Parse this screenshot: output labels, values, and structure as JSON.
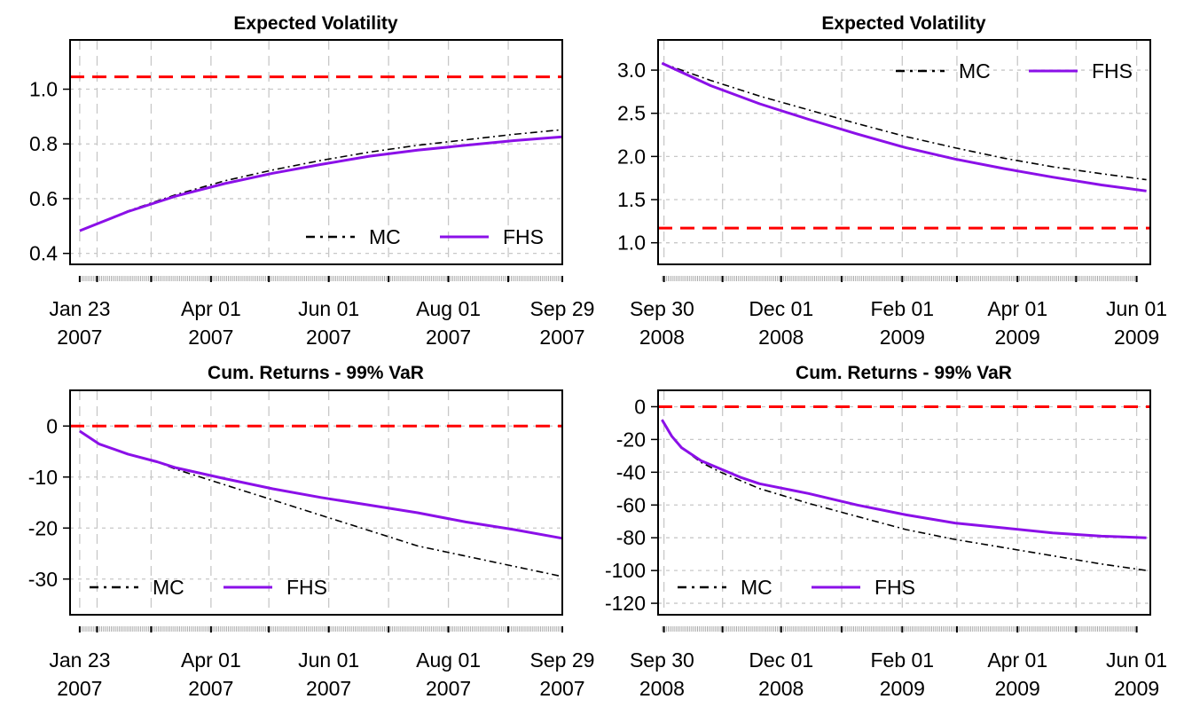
{
  "colors": {
    "mc": "#000000",
    "fhs": "#8b10e8",
    "ref": "#ff0000",
    "grid": "#c8c8c8"
  },
  "chart_data": [
    {
      "id": "vol-2007",
      "type": "line",
      "title": "Expected Volatility",
      "xlabel": "",
      "ylabel": "",
      "xlim": [
        -5,
        250
      ],
      "ylim": [
        0.36,
        1.18
      ],
      "yticks": [
        0.4,
        0.6,
        0.8,
        1.0
      ],
      "ytick_labels": [
        "0.4",
        "0.6",
        "0.8",
        "1.0"
      ],
      "xticks": [
        {
          "pos": 0,
          "line1": "Jan 23",
          "line2": "2007"
        },
        {
          "pos": 68,
          "line1": "Apr 01",
          "line2": "2007"
        },
        {
          "pos": 129,
          "line1": "Jun 01",
          "line2": "2007"
        },
        {
          "pos": 191,
          "line1": "Aug 01",
          "line2": "2007"
        },
        {
          "pos": 250,
          "line1": "Sep 29",
          "line2": "2007"
        }
      ],
      "vgrid": [
        0,
        9,
        37,
        68,
        98,
        129,
        160,
        191,
        222,
        250
      ],
      "grid": true,
      "hline": 1.045,
      "legend_position": "bottom-right",
      "x": [
        0,
        25,
        50,
        75,
        100,
        125,
        150,
        175,
        200,
        225,
        250
      ],
      "series": [
        {
          "name": "MC",
          "style": "dashdot",
          "values": [
            0.483,
            0.555,
            0.615,
            0.665,
            0.705,
            0.74,
            0.77,
            0.795,
            0.815,
            0.835,
            0.852
          ]
        },
        {
          "name": "FHS",
          "style": "solid",
          "values": [
            0.483,
            0.553,
            0.61,
            0.655,
            0.693,
            0.725,
            0.755,
            0.777,
            0.795,
            0.812,
            0.826
          ]
        }
      ]
    },
    {
      "id": "vol-2008",
      "type": "line",
      "title": "Expected Volatility",
      "xlabel": "",
      "ylabel": "",
      "xlim": [
        -2,
        250
      ],
      "ylim": [
        0.75,
        3.35
      ],
      "yticks": [
        1.0,
        1.5,
        2.0,
        2.5,
        3.0
      ],
      "ytick_labels": [
        "1.0",
        "1.5",
        "2.0",
        "2.5",
        "3.0"
      ],
      "xticks": [
        {
          "pos": 0,
          "line1": "Sep 30",
          "line2": "2008"
        },
        {
          "pos": 61,
          "line1": "Dec 01",
          "line2": "2008"
        },
        {
          "pos": 123,
          "line1": "Feb 01",
          "line2": "2009"
        },
        {
          "pos": 182,
          "line1": "Apr 01",
          "line2": "2009"
        },
        {
          "pos": 243,
          "line1": "Jun 01",
          "line2": "2009"
        }
      ],
      "vgrid": [
        1,
        31,
        61,
        92,
        123,
        151,
        182,
        212,
        243
      ],
      "grid": true,
      "hline": 1.17,
      "legend_position": "top-right",
      "x": [
        0,
        25,
        50,
        75,
        100,
        125,
        150,
        175,
        200,
        225,
        248
      ],
      "series": [
        {
          "name": "MC",
          "style": "dashdot",
          "values": [
            3.08,
            2.88,
            2.7,
            2.54,
            2.38,
            2.23,
            2.1,
            1.98,
            1.88,
            1.8,
            1.73
          ]
        },
        {
          "name": "FHS",
          "style": "solid",
          "values": [
            3.08,
            2.82,
            2.61,
            2.43,
            2.26,
            2.1,
            1.97,
            1.86,
            1.76,
            1.67,
            1.6
          ]
        }
      ]
    },
    {
      "id": "var-2007",
      "type": "line",
      "title": "Cum. Returns - 99% VaR",
      "xlabel": "",
      "ylabel": "",
      "xlim": [
        -5,
        250
      ],
      "ylim": [
        -37,
        7
      ],
      "yticks": [
        -30,
        -20,
        -10,
        0
      ],
      "ytick_labels": [
        "-30",
        "-20",
        "-10",
        "0"
      ],
      "xticks": [
        {
          "pos": 0,
          "line1": "Jan 23",
          "line2": "2007"
        },
        {
          "pos": 68,
          "line1": "Apr 01",
          "line2": "2007"
        },
        {
          "pos": 129,
          "line1": "Jun 01",
          "line2": "2007"
        },
        {
          "pos": 191,
          "line1": "Aug 01",
          "line2": "2007"
        },
        {
          "pos": 250,
          "line1": "Sep 29",
          "line2": "2007"
        }
      ],
      "vgrid": [
        0,
        9,
        37,
        68,
        98,
        129,
        160,
        191,
        222,
        250
      ],
      "grid": true,
      "hline": 0,
      "legend_position": "bottom-left",
      "x": [
        0,
        10,
        25,
        40,
        50,
        75,
        100,
        125,
        150,
        175,
        200,
        225,
        250
      ],
      "series": [
        {
          "name": "MC",
          "style": "dashdot",
          "values": [
            -1,
            -3.5,
            -5.5,
            -7,
            -8.5,
            -11.5,
            -14.5,
            -17.5,
            -20.5,
            -23.5,
            -25.5,
            -27.5,
            -29.5
          ]
        },
        {
          "name": "FHS",
          "style": "solid",
          "values": [
            -1,
            -3.5,
            -5.5,
            -7,
            -8.2,
            -10.3,
            -12.3,
            -14,
            -15.5,
            -17,
            -18.8,
            -20.3,
            -22
          ]
        }
      ]
    },
    {
      "id": "var-2008",
      "type": "line",
      "title": "Cum. Returns - 99% VaR",
      "xlabel": "",
      "ylabel": "",
      "xlim": [
        -2,
        250
      ],
      "ylim": [
        -127,
        10
      ],
      "yticks": [
        -120,
        -100,
        -80,
        -60,
        -40,
        -20,
        0
      ],
      "ytick_labels": [
        "-120",
        "-100",
        "-80",
        "-60",
        "-40",
        "-20",
        "0"
      ],
      "xticks": [
        {
          "pos": 0,
          "line1": "Sep 30",
          "line2": "2008"
        },
        {
          "pos": 61,
          "line1": "Dec 01",
          "line2": "2008"
        },
        {
          "pos": 123,
          "line1": "Feb 01",
          "line2": "2009"
        },
        {
          "pos": 182,
          "line1": "Apr 01",
          "line2": "2009"
        },
        {
          "pos": 243,
          "line1": "Jun 01",
          "line2": "2009"
        }
      ],
      "vgrid": [
        1,
        31,
        61,
        92,
        123,
        151,
        182,
        212,
        243
      ],
      "grid": true,
      "hline": 0,
      "legend_position": "bottom-left",
      "x": [
        0,
        5,
        10,
        20,
        30,
        40,
        50,
        75,
        100,
        125,
        150,
        175,
        200,
        225,
        248
      ],
      "series": [
        {
          "name": "MC",
          "style": "dashdot",
          "values": [
            -8,
            -18,
            -25,
            -34,
            -40,
            -45,
            -50,
            -59,
            -67,
            -75,
            -81,
            -86,
            -91,
            -96,
            -100
          ]
        },
        {
          "name": "FHS",
          "style": "solid",
          "values": [
            -8,
            -18,
            -25,
            -33,
            -38,
            -43,
            -47,
            -53,
            -60,
            -66,
            -71,
            -74,
            -77,
            -79,
            -80
          ]
        }
      ]
    }
  ]
}
